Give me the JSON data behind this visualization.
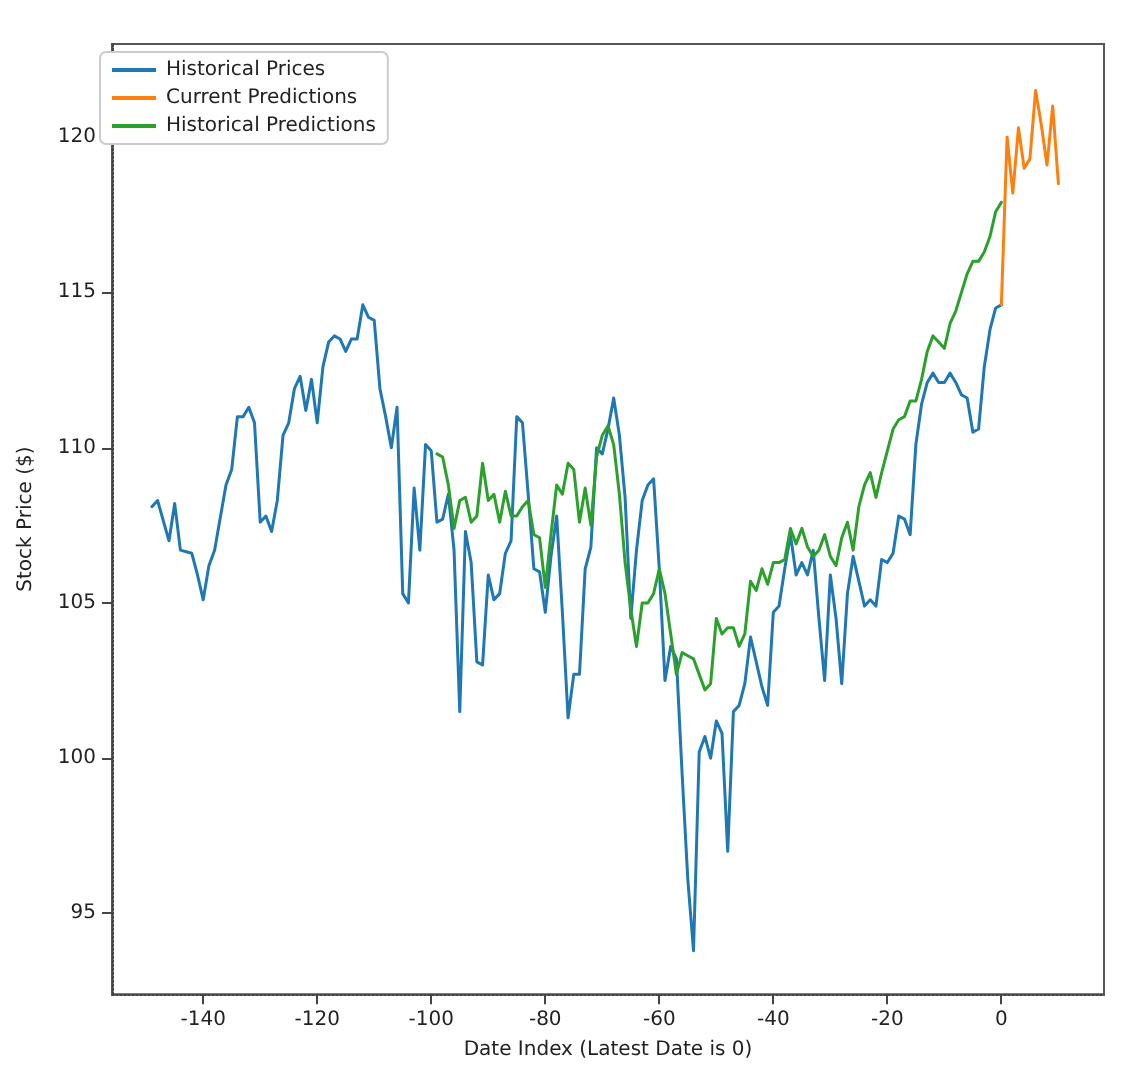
{
  "chart_data": {
    "type": "line",
    "xlabel": "Date Index (Latest Date is 0)",
    "ylabel": "Stock Price ($)",
    "xlim": [
      -156,
      18
    ],
    "ylim": [
      92.4,
      123
    ],
    "xticks": [
      -140,
      -120,
      -100,
      -80,
      -60,
      -40,
      -20,
      0
    ],
    "yticks": [
      95,
      100,
      105,
      110,
      115,
      120
    ],
    "grid": false,
    "legend": "top left",
    "marker": "none",
    "line_style": "solid",
    "series": [
      {
        "name": "Historical Prices",
        "color": "#1f77b4",
        "x": [
          -149,
          -148,
          -146,
          -145,
          -144,
          -142,
          -141,
          -140,
          -139,
          -138,
          -136,
          -135,
          -134,
          -133,
          -132,
          -131,
          -130,
          -129,
          -128,
          -127,
          -126,
          -125,
          -124,
          -123,
          -122,
          -121,
          -120,
          -119,
          -118,
          -117,
          -116,
          -115,
          -114,
          -113,
          -112,
          -111,
          -110,
          -109,
          -108,
          -107,
          -106,
          -105,
          -104,
          -103,
          -102,
          -101,
          -100,
          -99,
          -98,
          -97,
          -96,
          -95,
          -94,
          -93,
          -92,
          -91,
          -90,
          -89,
          -88,
          -87,
          -86,
          -85,
          -84,
          -83,
          -82,
          -81,
          -80,
          -79,
          -78,
          -77,
          -76,
          -75,
          -74,
          -73,
          -72,
          -71,
          -70,
          -69,
          -68,
          -67,
          -66,
          -65,
          -64,
          -63,
          -62,
          -61,
          -60,
          -59,
          -58,
          -57,
          -56,
          -55,
          -54,
          -53,
          -52,
          -51,
          -50,
          -49,
          -48,
          -47,
          -46,
          -45,
          -44,
          -43,
          -42,
          -41,
          -40,
          -39,
          -38,
          -37,
          -36,
          -35,
          -34,
          -33,
          -32,
          -31,
          -30,
          -29,
          -28,
          -27,
          -26,
          -25,
          -24,
          -23,
          -22,
          -21,
          -20,
          -19,
          -18,
          -17,
          -16,
          -15,
          -14,
          -13,
          -12,
          -11,
          -10,
          -9,
          -8,
          -7,
          -6,
          -5,
          -4,
          -3,
          -2,
          -1,
          0
        ],
        "values": [
          108.1,
          108.3,
          107.0,
          108.2,
          106.7,
          106.6,
          105.9,
          105.1,
          106.2,
          106.7,
          108.8,
          109.3,
          111.0,
          111.0,
          111.3,
          110.8,
          107.6,
          107.8,
          107.3,
          108.3,
          110.4,
          110.8,
          111.9,
          112.3,
          111.2,
          112.2,
          110.8,
          112.6,
          113.4,
          113.6,
          113.5,
          113.1,
          113.5,
          113.5,
          114.6,
          114.2,
          114.1,
          111.9,
          111.0,
          110.0,
          111.3,
          105.3,
          105.0,
          108.7,
          106.7,
          110.1,
          109.9,
          107.6,
          107.7,
          108.5,
          106.7,
          101.5,
          107.3,
          106.3,
          103.1,
          103.0,
          105.9,
          105.1,
          105.3,
          106.6,
          107.0,
          111.0,
          110.8,
          108.5,
          106.1,
          106.0,
          104.7,
          106.5,
          107.8,
          104.7,
          101.3,
          102.7,
          102.7,
          106.1,
          106.8,
          110.0,
          109.8,
          110.6,
          111.6,
          110.4,
          108.4,
          104.5,
          106.7,
          108.3,
          108.8,
          109.0,
          106.1,
          102.5,
          103.6,
          103.2,
          99.5,
          96.1,
          93.8,
          100.2,
          100.7,
          100.0,
          101.2,
          100.8,
          97.0,
          101.5,
          101.7,
          102.4,
          103.9,
          103.1,
          102.3,
          101.7,
          104.7,
          104.9,
          106.1,
          107.2,
          105.9,
          106.3,
          105.9,
          106.7,
          104.5,
          102.5,
          105.9,
          104.5,
          102.4,
          105.3,
          106.5,
          105.7,
          104.9,
          105.1,
          104.9,
          106.4,
          106.3,
          106.6,
          107.8,
          107.7,
          107.2,
          110.1,
          111.4,
          112.1,
          112.4,
          112.1,
          112.1,
          112.4,
          112.1,
          111.7,
          111.6,
          110.5,
          110.6,
          112.6,
          113.8,
          114.5,
          114.6
        ]
      },
      {
        "name": "Current Predictions",
        "color": "#ff7f0e",
        "x": [
          0,
          1,
          2,
          3,
          4,
          5,
          6,
          7,
          8,
          9,
          10
        ],
        "values": [
          114.6,
          120.0,
          118.2,
          120.3,
          119.0,
          119.3,
          121.5,
          120.4,
          119.1,
          121.0,
          118.5
        ]
      },
      {
        "name": "Historical Predictions",
        "color": "#2ca02c",
        "x": [
          -99,
          -98,
          -97,
          -96,
          -95,
          -94,
          -93,
          -92,
          -91,
          -90,
          -89,
          -88,
          -87,
          -86,
          -85,
          -84,
          -83,
          -82,
          -81,
          -80,
          -79,
          -78,
          -77,
          -76,
          -75,
          -74,
          -73,
          -72,
          -71,
          -70,
          -69,
          -68,
          -67,
          -66,
          -65,
          -64,
          -63,
          -62,
          -61,
          -60,
          -59,
          -58,
          -57,
          -56,
          -55,
          -54,
          -53,
          -52,
          -51,
          -50,
          -49,
          -48,
          -47,
          -46,
          -45,
          -44,
          -43,
          -42,
          -41,
          -40,
          -39,
          -38,
          -37,
          -36,
          -35,
          -34,
          -33,
          -32,
          -31,
          -30,
          -29,
          -28,
          -27,
          -26,
          -25,
          -24,
          -23,
          -22,
          -21,
          -20,
          -19,
          -18,
          -17,
          -16,
          -15,
          -14,
          -13,
          -12,
          -11,
          -10,
          -9,
          -8,
          -7,
          -6,
          -5,
          -4,
          -3,
          -2,
          -1,
          0
        ],
        "values": [
          109.8,
          109.7,
          108.8,
          107.4,
          108.3,
          108.4,
          107.6,
          107.8,
          109.5,
          108.3,
          108.5,
          107.6,
          108.6,
          107.8,
          107.8,
          108.1,
          108.3,
          107.2,
          107.1,
          105.5,
          107.2,
          108.8,
          108.5,
          109.5,
          109.3,
          107.6,
          108.7,
          107.5,
          109.7,
          110.4,
          110.7,
          110.1,
          108.5,
          106.3,
          104.8,
          103.6,
          105.0,
          105.0,
          105.3,
          106.1,
          105.3,
          104.0,
          102.7,
          103.4,
          103.3,
          103.2,
          102.7,
          102.2,
          102.4,
          104.5,
          104.0,
          104.2,
          104.2,
          103.6,
          104.0,
          105.7,
          105.4,
          106.1,
          105.6,
          106.3,
          106.3,
          106.4,
          107.4,
          106.9,
          107.4,
          106.8,
          106.5,
          106.7,
          107.2,
          106.5,
          106.2,
          107.1,
          107.6,
          106.7,
          108.1,
          108.8,
          109.2,
          108.4,
          109.2,
          109.9,
          110.6,
          110.9,
          111.0,
          111.5,
          111.5,
          112.2,
          113.1,
          113.6,
          113.4,
          113.2,
          114.0,
          114.4,
          115.0,
          115.6,
          116.0,
          116.0,
          116.3,
          116.8,
          117.6,
          117.9
        ]
      }
    ]
  }
}
